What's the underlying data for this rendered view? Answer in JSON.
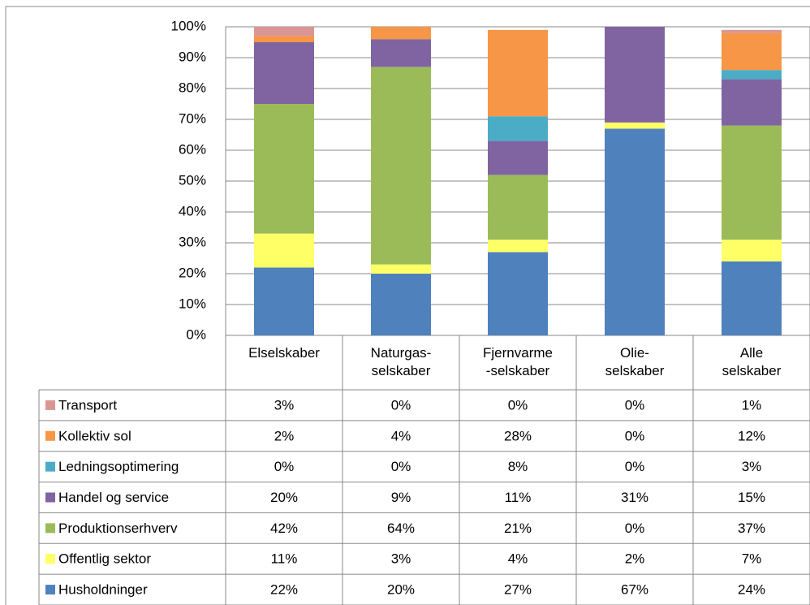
{
  "chart_data": {
    "type": "stacked_bar",
    "categories": [
      "Elselskaber",
      "Naturgas-\nselskaber",
      "Fjernvarme\n-selskaber",
      "Olie-\nselskaber",
      "Alle\nselskaber"
    ],
    "ylim": [
      0,
      100
    ],
    "yticks": [
      {
        "value": 0,
        "label": "0%"
      },
      {
        "value": 10,
        "label": "10%"
      },
      {
        "value": 20,
        "label": "20%"
      },
      {
        "value": 30,
        "label": "30%"
      },
      {
        "value": 40,
        "label": "40%"
      },
      {
        "value": 50,
        "label": "50%"
      },
      {
        "value": 60,
        "label": "60%"
      },
      {
        "value": 70,
        "label": "70%"
      },
      {
        "value": 80,
        "label": "80%"
      },
      {
        "value": 90,
        "label": "90%"
      },
      {
        "value": 100,
        "label": "100%"
      }
    ],
    "grid": true,
    "series": [
      {
        "name": "Husholdninger",
        "color": "#4f81bd",
        "values": [
          22,
          20,
          27,
          67,
          24
        ],
        "value_labels": [
          "22%",
          "20%",
          "27%",
          "67%",
          "24%"
        ]
      },
      {
        "name": "Offentlig sektor",
        "color": "#ffff66",
        "values": [
          11,
          3,
          4,
          2,
          7
        ],
        "value_labels": [
          "11%",
          "3%",
          "4%",
          "2%",
          "7%"
        ]
      },
      {
        "name": "Produktionserhverv",
        "color": "#9bbb59",
        "values": [
          42,
          64,
          21,
          0,
          37
        ],
        "value_labels": [
          "42%",
          "64%",
          "21%",
          "0%",
          "37%"
        ]
      },
      {
        "name": "Handel og service",
        "color": "#8064a2",
        "values": [
          20,
          9,
          11,
          31,
          15
        ],
        "value_labels": [
          "20%",
          "9%",
          "11%",
          "31%",
          "15%"
        ]
      },
      {
        "name": "Ledningsoptimering",
        "color": "#4bacc6",
        "values": [
          0,
          0,
          8,
          0,
          3
        ],
        "value_labels": [
          "0%",
          "0%",
          "8%",
          "0%",
          "3%"
        ]
      },
      {
        "name": "Kollektiv sol",
        "color": "#f79646",
        "values": [
          2,
          4,
          28,
          0,
          12
        ],
        "value_labels": [
          "2%",
          "4%",
          "28%",
          "0%",
          "12%"
        ]
      },
      {
        "name": "Transport",
        "color": "#d99694",
        "values": [
          3,
          0,
          0,
          0,
          1
        ],
        "value_labels": [
          "3%",
          "0%",
          "0%",
          "0%",
          "1%"
        ]
      }
    ]
  }
}
